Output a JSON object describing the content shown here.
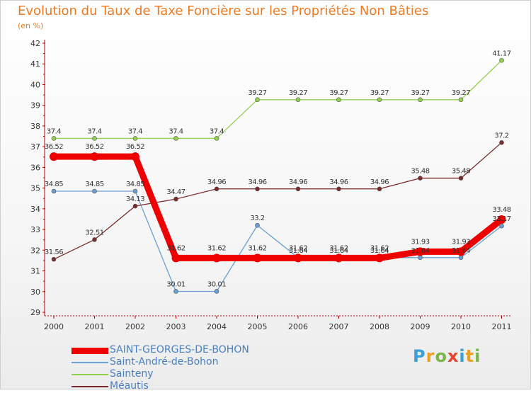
{
  "title": "Evolution du Taux de Taxe Foncière sur les Propriétés Non Bâties",
  "subtitle": "(en %)",
  "logo": {
    "text": "Proxiti",
    "letters": [
      {
        "ch": "P",
        "color": "#3aa0d8"
      },
      {
        "ch": "r",
        "color": "#f0a020"
      },
      {
        "ch": "o",
        "color": "#7ab648"
      },
      {
        "ch": "x",
        "color": "#e8452e"
      },
      {
        "ch": "i",
        "color": "#3aa0d8"
      },
      {
        "ch": "t",
        "color": "#f0a020"
      },
      {
        "ch": "i",
        "color": "#7ab648"
      }
    ]
  },
  "chart_data": {
    "type": "line",
    "title": "Evolution du Taux de Taxe Foncière sur les Propriétés Non Bâties",
    "ylabel": "(en %)",
    "xlabel": "",
    "ylim": [
      29,
      42
    ],
    "yticks": [
      "29",
      "30",
      "31",
      "32",
      "33",
      "34",
      "35",
      "36",
      "37",
      "38",
      "39",
      "40",
      "41",
      "42"
    ],
    "grid": false,
    "legend": "bottom-left",
    "categories": [
      "2000",
      "2001",
      "2002",
      "2003",
      "2004",
      "2005",
      "2006",
      "2007",
      "2008",
      "2009",
      "2010",
      "2011"
    ],
    "series": [
      {
        "name": "SAINT-GEORGES-DE-BOHON",
        "color": "#ee0000",
        "emphasis": "thick",
        "values": [
          36.52,
          36.52,
          36.52,
          31.62,
          31.62,
          31.62,
          31.62,
          31.62,
          31.62,
          31.93,
          31.93,
          33.48
        ],
        "labels": [
          "36.52",
          "36.52",
          "36.52",
          "31.62",
          "31.62",
          "31.62",
          "31.62",
          "31.62",
          "31.62",
          "31.93",
          "31.93",
          "33.48"
        ]
      },
      {
        "name": "Saint-André-de-Bohon",
        "color": "#6a9fd4",
        "emphasis": "thin",
        "values": [
          34.85,
          34.85,
          34.85,
          30.01,
          30.01,
          33.2,
          31.64,
          31.64,
          31.64,
          31.64,
          31.64,
          33.17
        ],
        "labels": [
          "34.85",
          "34.85",
          "34.85",
          "30.01",
          "30.01",
          "33.2",
          "31.64",
          "31.64",
          "31.64",
          "31.64",
          "31.64",
          "33.17"
        ]
      },
      {
        "name": "Sainteny",
        "color": "#92d050",
        "emphasis": "thin",
        "values": [
          37.4,
          37.4,
          37.4,
          37.4,
          37.4,
          39.27,
          39.27,
          39.27,
          39.27,
          39.27,
          39.27,
          41.17
        ],
        "labels": [
          "37.4",
          "37.4",
          "37.4",
          "37.4",
          "37.4",
          "39.27",
          "39.27",
          "39.27",
          "39.27",
          "39.27",
          "39.27",
          "41.17"
        ]
      },
      {
        "name": "Méautis",
        "color": "#7b2a2a",
        "emphasis": "thin",
        "values": [
          31.56,
          32.51,
          34.13,
          34.47,
          34.96,
          34.96,
          34.96,
          34.96,
          34.96,
          35.48,
          35.48,
          37.2
        ],
        "labels": [
          "31.56",
          "32.51",
          "34.13",
          "34.47",
          "34.96",
          "34.96",
          "34.96",
          "34.96",
          "34.96",
          "35.48",
          "35.48",
          "37.2"
        ]
      }
    ]
  }
}
